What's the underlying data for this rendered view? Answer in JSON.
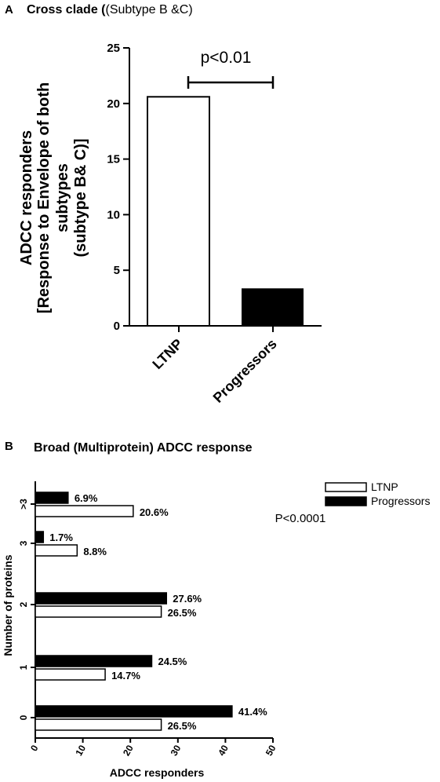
{
  "panel_a": {
    "letter": "A",
    "title_bold": "Cross clade (",
    "title_normal": "(Subtype B &C)"
  },
  "panel_b": {
    "letter": "B",
    "title": "Broad (Multiprotein) ADCC response"
  },
  "colors": {
    "ltnp": "#ffffff",
    "progressors": "#000000",
    "outline": "#000000"
  },
  "chart_data": [
    {
      "type": "bar",
      "categories": [
        "LTNP",
        "Progressors"
      ],
      "values": [
        20.6,
        3.3
      ],
      "fills": [
        "#ffffff",
        "#000000"
      ],
      "ylabel_lines": [
        "ADCC responders",
        "[Response to Envelope of both",
        "subtypes",
        "(subtype B& C)]"
      ],
      "xlabel": "",
      "ylim": [
        0,
        25
      ],
      "yticks": [
        0,
        5,
        10,
        15,
        20,
        25
      ],
      "annotation": "p<0.01",
      "grid": false
    },
    {
      "type": "bar",
      "orientation": "horizontal",
      "categories": [
        "0",
        "1",
        "2",
        "3",
        ">3"
      ],
      "series": [
        {
          "name": "LTNP",
          "values": [
            26.5,
            14.7,
            26.5,
            8.8,
            20.6
          ],
          "labels": [
            "26.5%",
            "14.7%",
            "26.5%",
            "8.8%",
            "20.6%"
          ],
          "fill": "#ffffff"
        },
        {
          "name": "Progressors",
          "values": [
            41.4,
            24.5,
            27.6,
            1.7,
            6.9
          ],
          "labels": [
            "41.4%",
            "24.5%",
            "27.6%",
            "1.7%",
            "6.9%"
          ],
          "fill": "#000000"
        }
      ],
      "xlabel": "ADCC responders",
      "ylabel": "Number of proteins",
      "xlim": [
        0,
        50
      ],
      "xticks": [
        0,
        10,
        20,
        30,
        40,
        50
      ],
      "annotation": "P<0.0001",
      "legend_position": "top-right",
      "grid": false
    }
  ]
}
